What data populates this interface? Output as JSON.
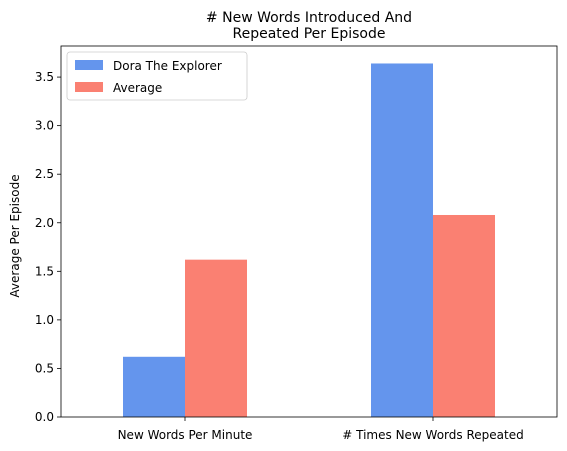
{
  "chart_data": {
    "type": "bar",
    "title_lines": [
      "# New Words Introduced And",
      "Repeated Per Episode"
    ],
    "xlabel": "",
    "ylabel": "Average Per Episode",
    "categories": [
      "New Words Per Minute",
      "# Times New Words Repeated"
    ],
    "series": [
      {
        "name": "Dora The Explorer",
        "values": [
          0.62,
          3.64
        ],
        "color": "#6495ed"
      },
      {
        "name": "Average",
        "values": [
          1.62,
          2.08
        ],
        "color": "#fa8072"
      }
    ],
    "ylim": [
      0,
      3.82
    ],
    "yticks": [
      "0.0",
      "0.5",
      "1.0",
      "1.5",
      "2.0",
      "2.5",
      "3.0",
      "3.5"
    ],
    "grid": false,
    "legend_position": "top-left"
  }
}
